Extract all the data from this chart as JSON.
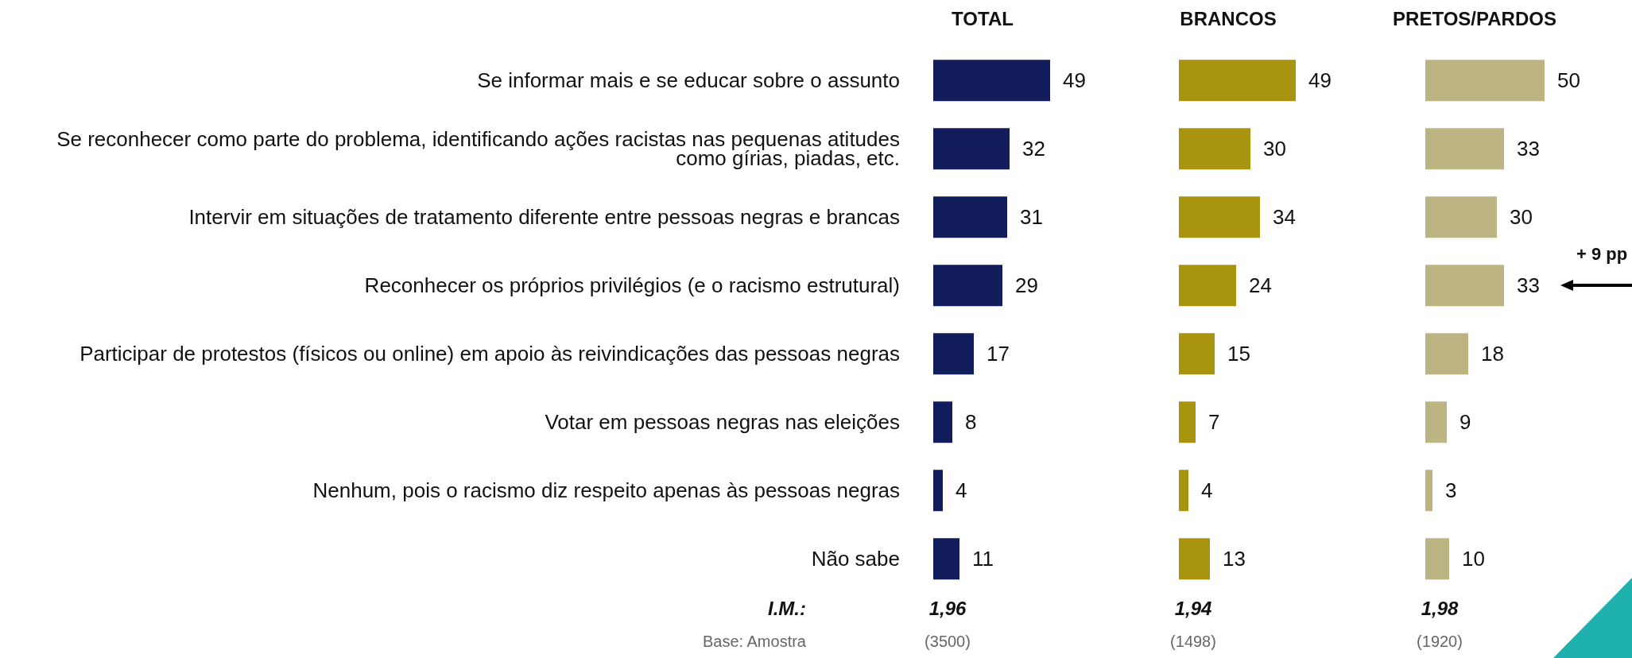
{
  "chart_data": [
    {
      "type": "bar",
      "orientation": "horizontal",
      "data_labels": true,
      "tick_labels": "y",
      "title": "TOTAL",
      "categories": [
        "Se informar mais e se educar sobre o assunto",
        "Se reconhecer como parte do problema, identificando ações racistas nas pequenas atitudes como gírias, piadas, etc.",
        "Intervir em situações de tratamento diferente entre pessoas negras e brancas",
        "Reconhecer os próprios privilégios (e o racismo estrutural)",
        "Participar de protestos (físicos ou online) em apoio às reivindicações das pessoas negras",
        "Votar em pessoas negras nas eleições",
        "Nenhum, pois o racismo diz respeito apenas às pessoas negras",
        "Não sabe"
      ],
      "values": [
        49,
        32,
        31,
        29,
        17,
        8,
        4,
        11
      ],
      "color": "#131c5a",
      "annotations": [
        "I.M.:",
        "1,96",
        "Base: Amostra",
        "(3500)"
      ]
    },
    {
      "type": "bar",
      "orientation": "horizontal",
      "data_labels": true,
      "tick_labels": false,
      "title": "BRANCOS",
      "categories": [
        "Se informar mais e se educar sobre o assunto",
        "Se reconhecer como parte do problema, identificando ações racistas nas pequenas atitudes como gírias, piadas, etc.",
        "Intervir em situações de tratamento diferente entre pessoas negras e brancas",
        "Reconhecer os próprios privilégios (e o racismo estrutural)",
        "Participar de protestos (físicos ou online) em apoio às reivindicações das pessoas negras",
        "Votar em pessoas negras nas eleições",
        "Nenhum, pois o racismo diz respeito apenas às pessoas negras",
        "Não sabe"
      ],
      "values": [
        49,
        30,
        34,
        24,
        15,
        7,
        4,
        13
      ],
      "color": "#a8940f",
      "annotations": [
        "1,94",
        "(1498)"
      ]
    },
    {
      "type": "bar",
      "orientation": "horizontal",
      "data_labels": true,
      "tick_labels": false,
      "title": "PRETOS/PARDOS",
      "categories": [
        "Se informar mais e se educar sobre o assunto",
        "Se reconhecer como parte do problema, identificando ações racistas nas pequenas atitudes como gírias, piadas, etc.",
        "Intervir em situações de tratamento diferente entre pessoas negras e brancas",
        "Reconhecer os próprios privilégios (e o racismo estrutural)",
        "Participar de protestos (físicos ou online) em apoio às reivindicações das pessoas negras",
        "Votar em pessoas negras nas eleições",
        "Nenhum, pois o racismo diz respeito apenas às pessoas negras",
        "Não sabe"
      ],
      "values": [
        50,
        33,
        30,
        33,
        18,
        9,
        3,
        10
      ],
      "color": "#bcb482",
      "annotations": [
        "1,98",
        "(1920)",
        "+ 9 pp"
      ]
    }
  ]
}
